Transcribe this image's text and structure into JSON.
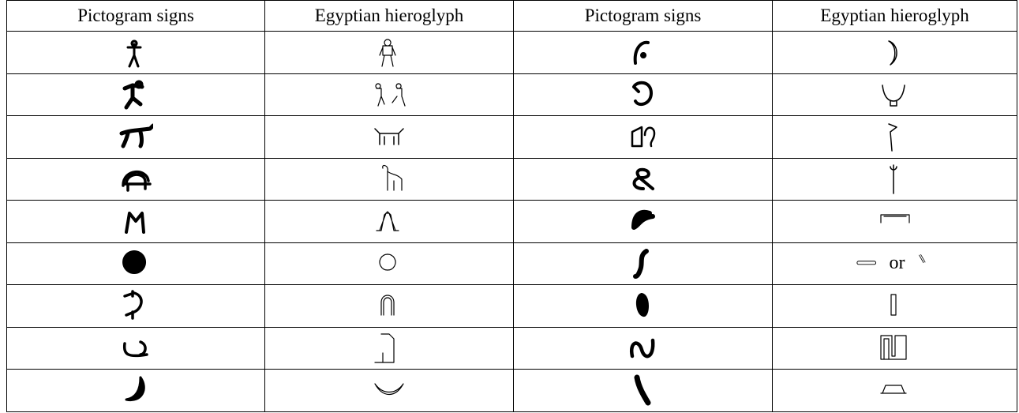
{
  "table": {
    "headers": [
      "Pictogram signs",
      "Egyptian hieroglyph",
      "Pictogram signs",
      "Egyptian hieroglyph"
    ],
    "alternative_word": "or"
  }
}
